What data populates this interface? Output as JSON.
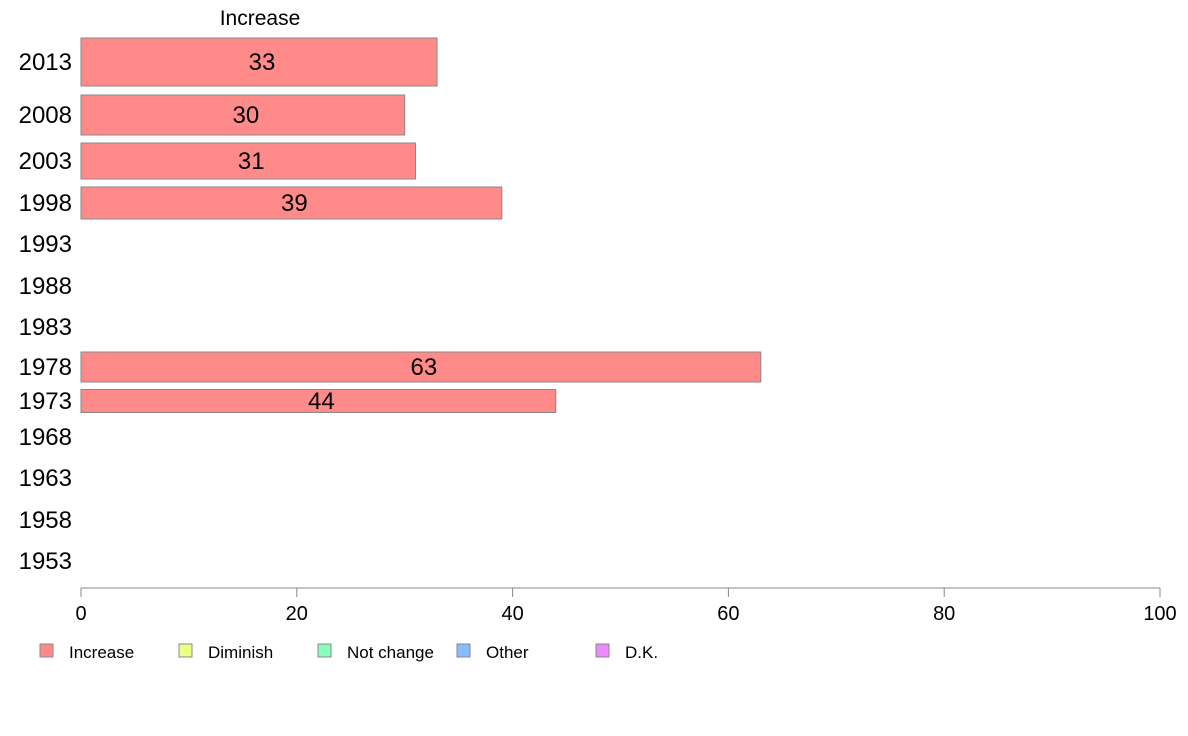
{
  "chart_data": {
    "type": "bar",
    "orientation": "horizontal",
    "title": "Increase",
    "categories": [
      "2013",
      "2008",
      "2003",
      "1998",
      "1993",
      "1988",
      "1983",
      "1978",
      "1973",
      "1968",
      "1963",
      "1958",
      "1953"
    ],
    "series": [
      {
        "name": "Increase",
        "color": "#ff8a8a",
        "values": [
          33,
          30,
          31,
          39,
          null,
          null,
          null,
          63,
          44,
          null,
          null,
          null,
          null
        ]
      }
    ],
    "xlim": [
      0,
      100
    ],
    "xticks": [
      0,
      20,
      40,
      60,
      80,
      100
    ],
    "grid": false,
    "legend_position": "bottom",
    "legend": [
      {
        "label": "Increase",
        "color": "#ff8a8a"
      },
      {
        "label": "Diminish",
        "color": "#eeff88"
      },
      {
        "label": "Not change",
        "color": "#88ffbb"
      },
      {
        "label": "Other",
        "color": "#88bbff"
      },
      {
        "label": "D.K.",
        "color": "#ee88ff"
      }
    ]
  }
}
